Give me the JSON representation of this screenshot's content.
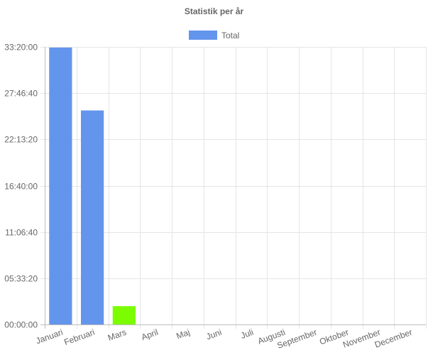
{
  "chart_data": {
    "type": "bar",
    "title": "Statistik per år",
    "legend": {
      "position": "top",
      "items": [
        {
          "label": "Total",
          "color": "#6495ED"
        }
      ]
    },
    "categories": [
      "Januari",
      "Februari",
      "Mars",
      "April",
      "Maj",
      "Juni",
      "Juli",
      "Augusti",
      "September",
      "Oktober",
      "November",
      "December"
    ],
    "series": [
      {
        "name": "Total",
        "values_seconds": [
          119700,
          92520,
          7920,
          0,
          0,
          0,
          0,
          0,
          0,
          0,
          0,
          0
        ],
        "colors": [
          "#6495ED",
          "#6495ED",
          "#7CFC00",
          "#6495ED",
          "#6495ED",
          "#6495ED",
          "#6495ED",
          "#6495ED",
          "#6495ED",
          "#6495ED",
          "#6495ED",
          "#6495ED"
        ]
      }
    ],
    "y_ticks": [
      "00:00:00",
      "05:33:20",
      "11:06:40",
      "16:40:00",
      "22:13:20",
      "27:46:40",
      "33:20:00"
    ],
    "y_tick_values_seconds": [
      0,
      20000,
      40000,
      60000,
      80000,
      100000,
      120000
    ],
    "ylim_seconds": [
      0,
      120000
    ],
    "grid": true
  }
}
